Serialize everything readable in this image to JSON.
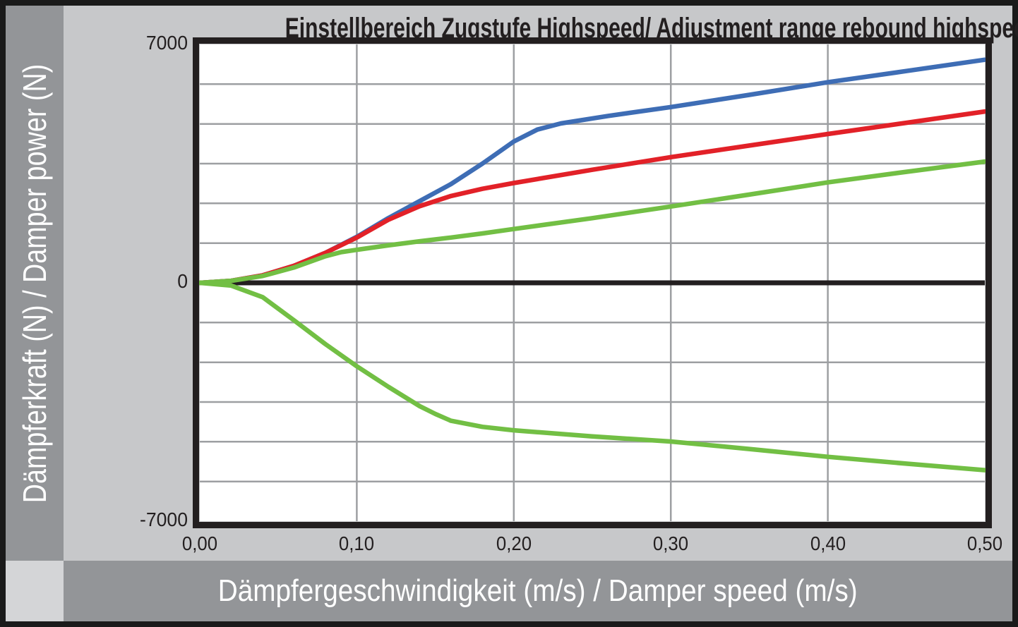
{
  "frame": {
    "y_axis_band_label": "Dämpferkraft (N) / Damper power (N)",
    "x_axis_band_label": "Dämpfergeschwindigkeit (m/s) / Damper speed (m/s)"
  },
  "colors": {
    "outer_border": "#1a1a1a",
    "background": "#c7c8ca",
    "band_gray": "#939598",
    "corner_gray": "#d4d5d7",
    "plot_background": "#ffffff",
    "gridline": "#9d9fa2",
    "axis_black": "#231f20",
    "blue_curve": "#3e6db5",
    "red_curve": "#e22128",
    "green_curve": "#72bf44"
  },
  "chart_data": {
    "type": "line",
    "title": "Einstellbereich Zugstufe Highspeed/ Adjustment range rebound highspeed",
    "xlabel": "Dämpfergeschwindigkeit (m/s) / Damper speed (m/s)",
    "ylabel": "Dämpferkraft (N) / Damper power (N)",
    "xlim": [
      0,
      0.5
    ],
    "ylim": [
      -7000,
      7000
    ],
    "grid": {
      "x_step": 0.1,
      "y_divisions_per_half": 6,
      "visible": true
    },
    "legend": "none",
    "x_ticks": {
      "values": [
        0,
        0.1,
        0.2,
        0.3,
        0.4,
        0.5
      ],
      "labels": [
        "0,00",
        "0,10",
        "0,20",
        "0,30",
        "0,40",
        "0,50"
      ]
    },
    "y_ticks": {
      "values": [
        7000,
        0,
        -7000
      ],
      "labels": [
        "7000",
        "0",
        "-7000"
      ]
    },
    "series": [
      {
        "name": "blue-curve-max-rebound-highspeed",
        "color": "#3e6db5",
        "points": [
          [
            0,
            0
          ],
          [
            0.02,
            60
          ],
          [
            0.04,
            220
          ],
          [
            0.06,
            500
          ],
          [
            0.08,
            880
          ],
          [
            0.1,
            1350
          ],
          [
            0.12,
            1900
          ],
          [
            0.14,
            2400
          ],
          [
            0.16,
            2900
          ],
          [
            0.18,
            3500
          ],
          [
            0.2,
            4150
          ],
          [
            0.215,
            4500
          ],
          [
            0.23,
            4680
          ],
          [
            0.26,
            4900
          ],
          [
            0.3,
            5160
          ],
          [
            0.35,
            5520
          ],
          [
            0.4,
            5890
          ],
          [
            0.45,
            6220
          ],
          [
            0.5,
            6550
          ]
        ]
      },
      {
        "name": "red-curve-standard-rebound-highspeed",
        "color": "#e22128",
        "points": [
          [
            0,
            0
          ],
          [
            0.02,
            60
          ],
          [
            0.04,
            220
          ],
          [
            0.06,
            500
          ],
          [
            0.08,
            880
          ],
          [
            0.1,
            1330
          ],
          [
            0.12,
            1850
          ],
          [
            0.14,
            2250
          ],
          [
            0.16,
            2550
          ],
          [
            0.18,
            2760
          ],
          [
            0.2,
            2930
          ],
          [
            0.25,
            3320
          ],
          [
            0.3,
            3690
          ],
          [
            0.35,
            4030
          ],
          [
            0.4,
            4370
          ],
          [
            0.45,
            4700
          ],
          [
            0.5,
            5030
          ]
        ]
      },
      {
        "name": "green-curve-min-rebound-highspeed",
        "color": "#72bf44",
        "points": [
          [
            0,
            0
          ],
          [
            0.02,
            60
          ],
          [
            0.04,
            200
          ],
          [
            0.06,
            450
          ],
          [
            0.08,
            780
          ],
          [
            0.09,
            900
          ],
          [
            0.1,
            970
          ],
          [
            0.12,
            1100
          ],
          [
            0.14,
            1220
          ],
          [
            0.16,
            1330
          ],
          [
            0.18,
            1450
          ],
          [
            0.2,
            1580
          ],
          [
            0.25,
            1900
          ],
          [
            0.3,
            2240
          ],
          [
            0.35,
            2590
          ],
          [
            0.4,
            2950
          ],
          [
            0.45,
            3260
          ],
          [
            0.5,
            3560
          ]
        ]
      },
      {
        "name": "green-curve-lower-range",
        "color": "#72bf44",
        "points": [
          [
            0,
            0
          ],
          [
            0.02,
            -80
          ],
          [
            0.04,
            -420
          ],
          [
            0.06,
            -1100
          ],
          [
            0.08,
            -1800
          ],
          [
            0.1,
            -2450
          ],
          [
            0.12,
            -3050
          ],
          [
            0.14,
            -3620
          ],
          [
            0.15,
            -3850
          ],
          [
            0.16,
            -4050
          ],
          [
            0.18,
            -4230
          ],
          [
            0.2,
            -4330
          ],
          [
            0.25,
            -4510
          ],
          [
            0.3,
            -4660
          ],
          [
            0.35,
            -4880
          ],
          [
            0.4,
            -5110
          ],
          [
            0.45,
            -5310
          ],
          [
            0.5,
            -5500
          ]
        ]
      }
    ]
  }
}
